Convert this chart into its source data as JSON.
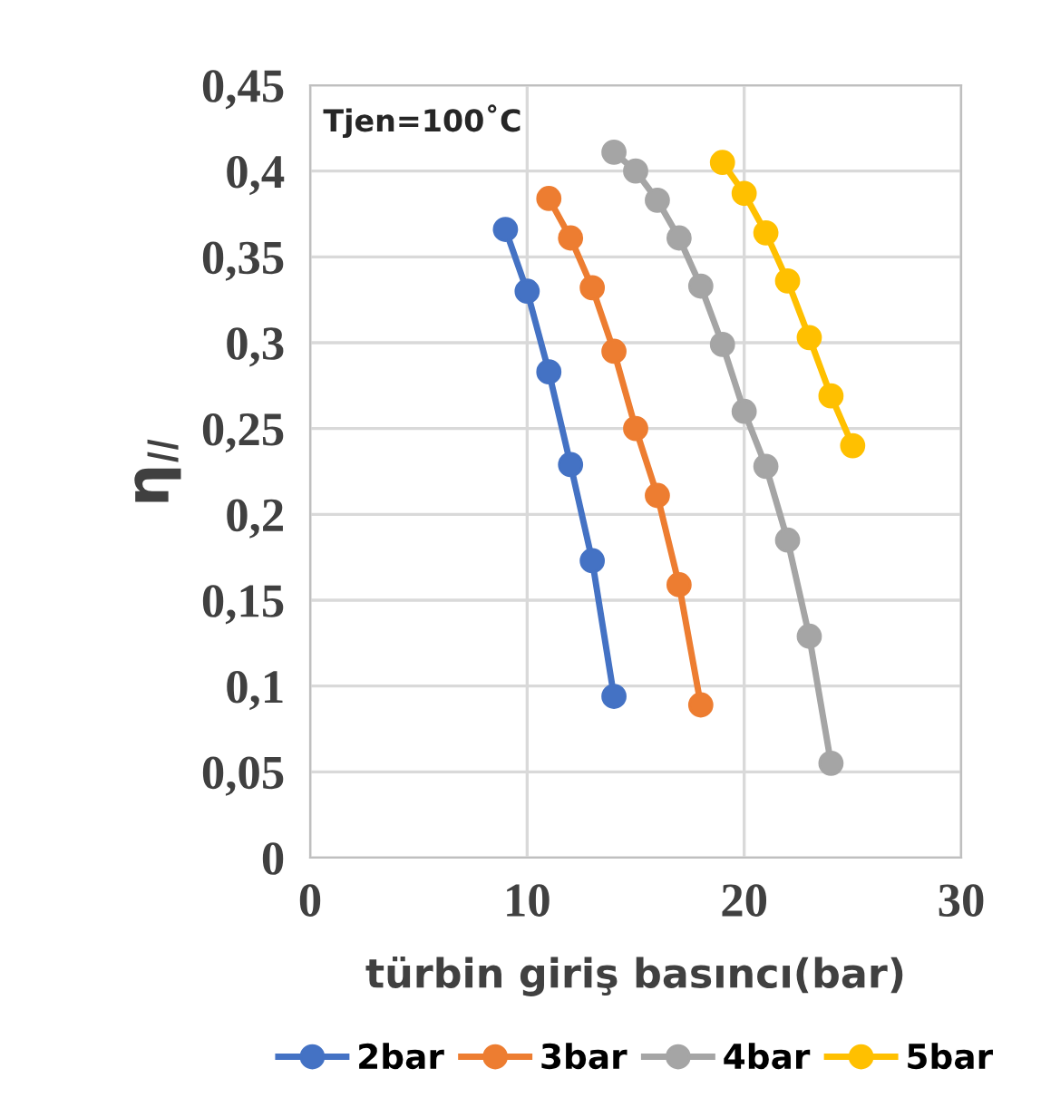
{
  "chart_data": {
    "type": "line",
    "xlabel": "türbin giriş basıncı(bar)",
    "ylabel": "η$_{II}$",
    "annotations": [
      "Tjen=100˚C"
    ],
    "xlim": [
      0,
      30
    ],
    "xticks": [
      0,
      10,
      20,
      30
    ],
    "ylim": [
      0,
      0.45
    ],
    "yticks": [
      {
        "value": 0,
        "label": "0"
      },
      {
        "value": 0.05,
        "label": "0,05"
      },
      {
        "value": 0.1,
        "label": "0,1"
      },
      {
        "value": 0.15,
        "label": "0,15"
      },
      {
        "value": 0.2,
        "label": "0,2"
      },
      {
        "value": 0.25,
        "label": "0,25"
      },
      {
        "value": 0.3,
        "label": "0,3"
      },
      {
        "value": 0.35,
        "label": "0,35"
      },
      {
        "value": 0.4,
        "label": "0,4"
      },
      {
        "value": 0.45,
        "label": "0,45"
      }
    ],
    "grid": true,
    "legend": "bottom",
    "marker": "circle",
    "line_style": "solid",
    "series": [
      {
        "name": "2bar",
        "color": "#4472c4",
        "x": [
          9,
          10,
          11,
          12,
          13,
          14
        ],
        "values": [
          0.366,
          0.33,
          0.283,
          0.229,
          0.173,
          0.094
        ]
      },
      {
        "name": "3bar",
        "color": "#ed7d31",
        "x": [
          11,
          12,
          13,
          14,
          15,
          16,
          17,
          18
        ],
        "values": [
          0.384,
          0.361,
          0.332,
          0.295,
          0.25,
          0.211,
          0.159,
          0.089
        ]
      },
      {
        "name": "4bar",
        "color": "#a5a5a5",
        "x": [
          14,
          15,
          16,
          17,
          18,
          19,
          20,
          21,
          22,
          23,
          24
        ],
        "values": [
          0.411,
          0.4,
          0.383,
          0.361,
          0.333,
          0.299,
          0.26,
          0.228,
          0.185,
          0.129,
          0.055
        ]
      },
      {
        "name": "5bar",
        "color": "#ffc000",
        "x": [
          19,
          20,
          21,
          22,
          23,
          24,
          25
        ],
        "values": [
          0.405,
          0.387,
          0.364,
          0.336,
          0.303,
          0.269,
          0.24
        ]
      }
    ]
  }
}
